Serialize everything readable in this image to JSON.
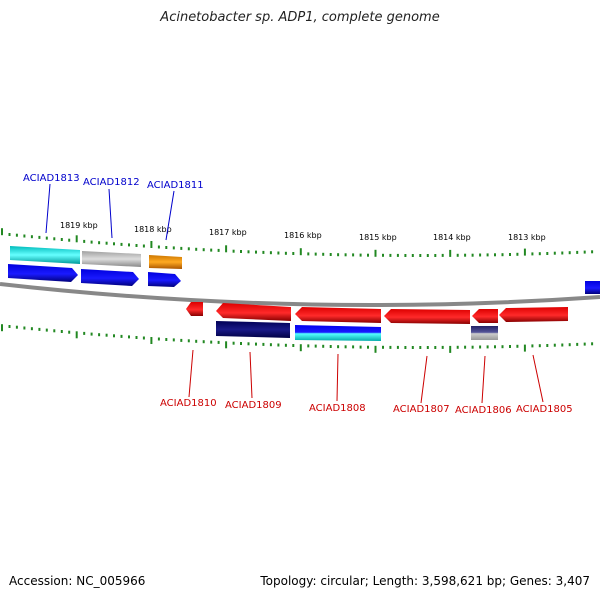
{
  "title": "Acinetobacter sp. ADP1, complete genome",
  "accession": "Accession: NC_005966",
  "summary": "Topology: circular; Length: 3,598,621 bp; Genes: 3,407",
  "colors": {
    "forward_gene": "#0a0aee",
    "reverse_gene": "#ee1111",
    "cog_cyan": "#22dddd",
    "cog_grey": "#b8b8b8",
    "cog_orange": "#ee8800",
    "cog_navy": "#0a0a66",
    "cog_navy_grey": "#8888aa",
    "backbone": "#888888",
    "ticks": "#228822"
  },
  "scale_labels": [
    "1819 kbp",
    "1818 kbp",
    "1817 kbp",
    "1816 kbp",
    "1815 kbp",
    "1814 kbp",
    "1813 kbp"
  ],
  "genes_forward": [
    {
      "name": "ACIAD1813",
      "cog": "cyan"
    },
    {
      "name": "ACIAD1812",
      "cog": "grey"
    },
    {
      "name": "ACIAD1811",
      "cog": "orange"
    },
    {
      "name": "",
      "cog": ""
    }
  ],
  "genes_reverse": [
    {
      "name": "",
      "cog": ""
    },
    {
      "name": "ACIAD1810",
      "cog": ""
    },
    {
      "name": "ACIAD1809",
      "cog": "navy"
    },
    {
      "name": "ACIAD1808",
      "cog": "blue-cyan"
    },
    {
      "name": "ACIAD1807",
      "cog": ""
    },
    {
      "name": "ACIAD1806",
      "cog": "navy-grey"
    },
    {
      "name": "ACIAD1805",
      "cog": ""
    }
  ]
}
